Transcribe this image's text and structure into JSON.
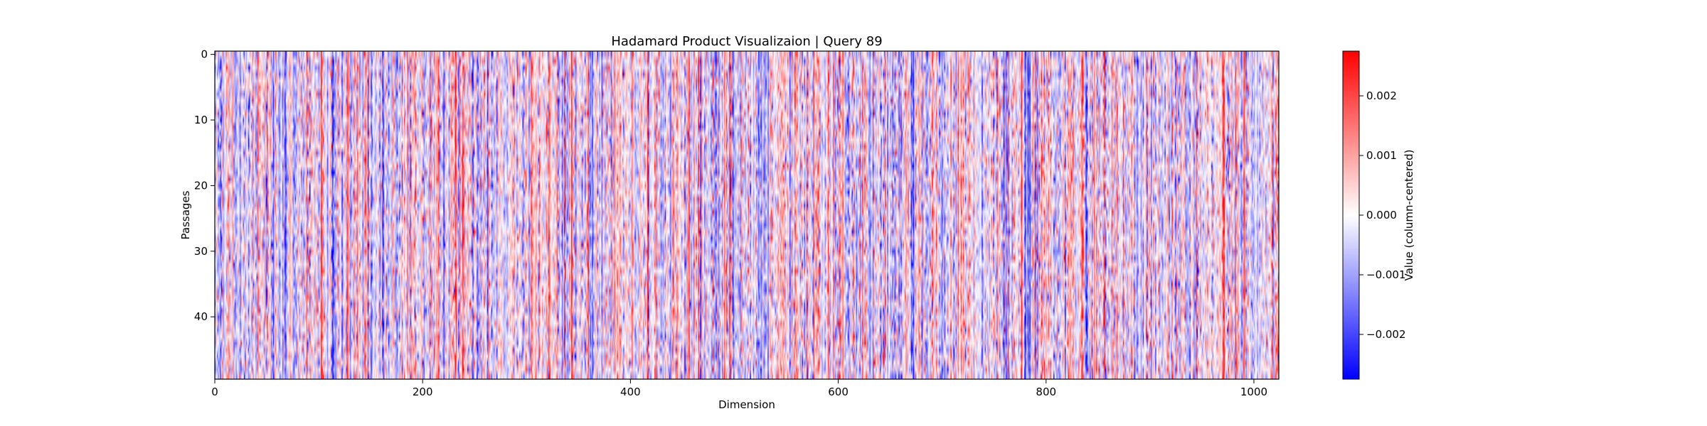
{
  "chart_data": {
    "type": "heatmap",
    "title": "Hadamard Product Visualizaion | Query 89",
    "xlabel": "Dimension",
    "ylabel": "Passages",
    "colorbar_label": "Value (column-centered)",
    "colormap": "bwr",
    "colors": {
      "low": "#0000ff",
      "mid": "#ffffff",
      "high": "#ff0000"
    },
    "n_rows": 50,
    "n_cols": 1024,
    "xlim": [
      0,
      1024
    ],
    "ylim": [
      50,
      0
    ],
    "clim": [
      -0.00275,
      0.00275
    ],
    "x_ticks": [
      {
        "value": 0,
        "label": "0"
      },
      {
        "value": 200,
        "label": "200"
      },
      {
        "value": 400,
        "label": "400"
      },
      {
        "value": 600,
        "label": "600"
      },
      {
        "value": 800,
        "label": "800"
      },
      {
        "value": 1000,
        "label": "1000"
      }
    ],
    "y_ticks": [
      {
        "value": 0,
        "label": "0"
      },
      {
        "value": 10,
        "label": "10"
      },
      {
        "value": 20,
        "label": "20"
      },
      {
        "value": 30,
        "label": "30"
      },
      {
        "value": 40,
        "label": "40"
      }
    ],
    "colorbar_ticks": [
      {
        "value": 0.002,
        "label": "0.002"
      },
      {
        "value": 0.001,
        "label": "0.001"
      },
      {
        "value": 0.0,
        "label": "0.000"
      },
      {
        "value": -0.001,
        "label": "−0.001"
      },
      {
        "value": -0.002,
        "label": "−0.002"
      }
    ]
  }
}
